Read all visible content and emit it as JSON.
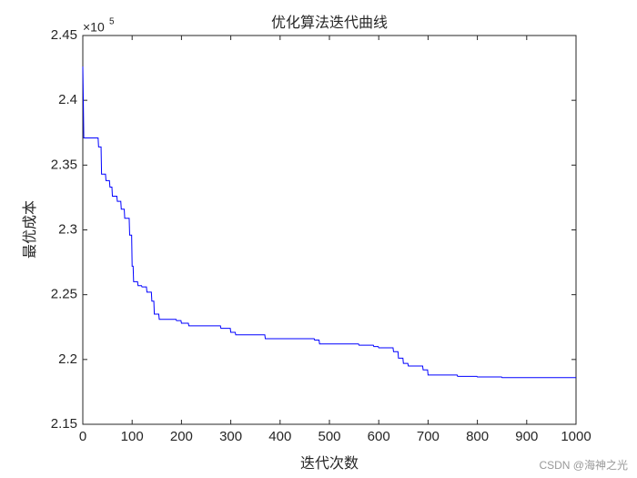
{
  "chart_data": {
    "type": "line",
    "title": "优化算法迭代曲线",
    "xlabel": "迭代次数",
    "ylabel": "最优成本",
    "y_exponent_base": "×10",
    "y_exponent": "5",
    "watermark": "CSDN @海神之光",
    "xlim": [
      0,
      1000
    ],
    "xticks": [
      0,
      100,
      200,
      300,
      400,
      500,
      600,
      700,
      800,
      900,
      1000
    ],
    "ylim": [
      2.15,
      2.45
    ],
    "yticks": [
      2.15,
      2.2,
      2.25,
      2.3,
      2.35,
      2.4,
      2.45
    ],
    "grid": false,
    "series": [
      {
        "color": "#0000ff",
        "x": [
          0,
          1,
          2,
          31,
          32,
          37,
          38,
          46,
          47,
          54,
          55,
          59,
          60,
          69,
          70,
          77,
          78,
          84,
          85,
          94,
          95,
          99,
          100,
          102,
          103,
          111,
          112,
          119,
          120,
          129,
          130,
          139,
          140,
          144,
          145,
          154,
          155,
          189,
          190,
          199,
          200,
          214,
          215,
          279,
          280,
          299,
          300,
          309,
          310,
          369,
          370,
          469,
          470,
          479,
          480,
          559,
          560,
          589,
          590,
          599,
          600,
          629,
          630,
          639,
          640,
          649,
          650,
          659,
          660,
          689,
          690,
          699,
          700,
          759,
          760,
          799,
          800,
          849,
          850,
          1000
        ],
        "values": [
          2.426,
          2.4,
          2.371,
          2.371,
          2.364,
          2.364,
          2.343,
          2.343,
          2.338,
          2.338,
          2.333,
          2.333,
          2.326,
          2.326,
          2.322,
          2.322,
          2.316,
          2.316,
          2.309,
          2.309,
          2.296,
          2.296,
          2.272,
          2.272,
          2.26,
          2.26,
          2.257,
          2.257,
          2.256,
          2.256,
          2.252,
          2.252,
          2.245,
          2.245,
          2.235,
          2.235,
          2.231,
          2.231,
          2.23,
          2.23,
          2.228,
          2.228,
          2.226,
          2.226,
          2.224,
          2.224,
          2.221,
          2.221,
          2.219,
          2.219,
          2.216,
          2.216,
          2.215,
          2.215,
          2.212,
          2.212,
          2.211,
          2.211,
          2.21,
          2.21,
          2.209,
          2.209,
          2.206,
          2.206,
          2.201,
          2.201,
          2.197,
          2.197,
          2.195,
          2.195,
          2.192,
          2.192,
          2.188,
          2.188,
          2.187,
          2.187,
          2.1865,
          2.1865,
          2.186,
          2.186
        ]
      }
    ]
  }
}
